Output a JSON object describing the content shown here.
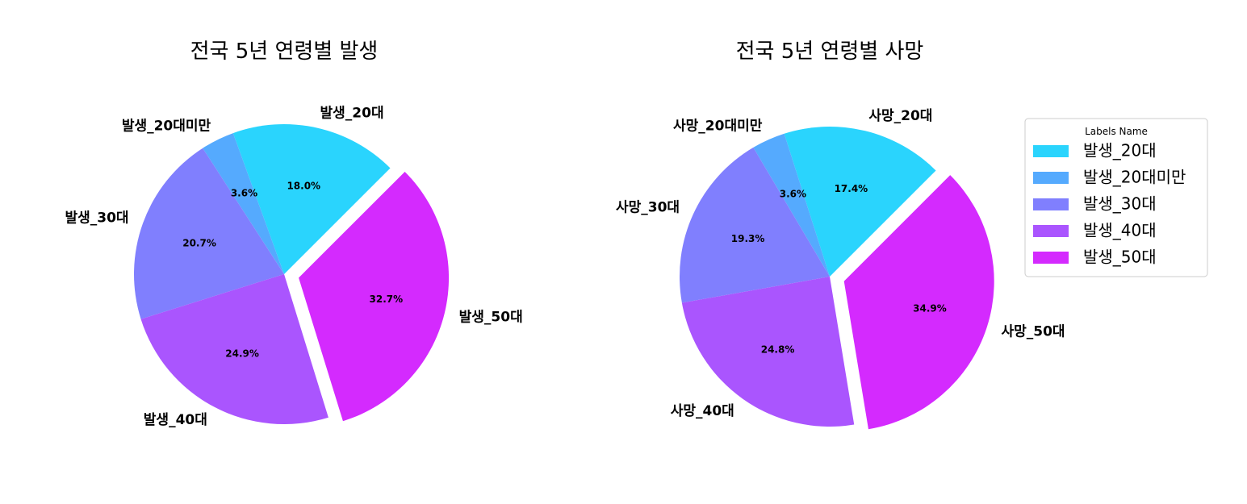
{
  "chart_data": [
    {
      "type": "pie",
      "title": "전국 5년 연령별 발생",
      "categories": [
        "발생_20대",
        "발생_20대미만",
        "발생_30대",
        "발생_40대",
        "발생_50대"
      ],
      "values": [
        18.0,
        3.6,
        20.7,
        24.9,
        32.7
      ],
      "value_labels": [
        "18.0%",
        "3.6%",
        "20.7%",
        "24.9%",
        "32.7%"
      ],
      "colors": [
        "#2ad4fd",
        "#55aafe",
        "#807ffe",
        "#aa55fe",
        "#d42afe"
      ],
      "explode": [
        0,
        0,
        0,
        0,
        0.1
      ],
      "start_angle": 45,
      "direction": "counterclockwise"
    },
    {
      "type": "pie",
      "title": "전국 5년 연령별 사망",
      "categories": [
        "사망_20대",
        "사망_20대미만",
        "사망_30대",
        "사망_40대",
        "사망_50대"
      ],
      "values": [
        17.4,
        3.6,
        19.3,
        24.8,
        34.9
      ],
      "value_labels": [
        "17.4%",
        "3.6%",
        "19.3%",
        "24.8%",
        "34.9%"
      ],
      "colors": [
        "#2ad4fd",
        "#55aafe",
        "#807ffe",
        "#aa55fe",
        "#d42afe"
      ],
      "explode": [
        0,
        0,
        0,
        0,
        0.1
      ],
      "start_angle": 45,
      "direction": "counterclockwise"
    }
  ],
  "legend": {
    "title": "Labels Name",
    "placement": "upper-right",
    "entries": [
      "발생_20대",
      "발생_20대미만",
      "발생_30대",
      "발생_40대",
      "발생_50대"
    ],
    "colors": [
      "#2ad4fd",
      "#55aafe",
      "#807ffe",
      "#aa55fe",
      "#d42afe"
    ]
  }
}
